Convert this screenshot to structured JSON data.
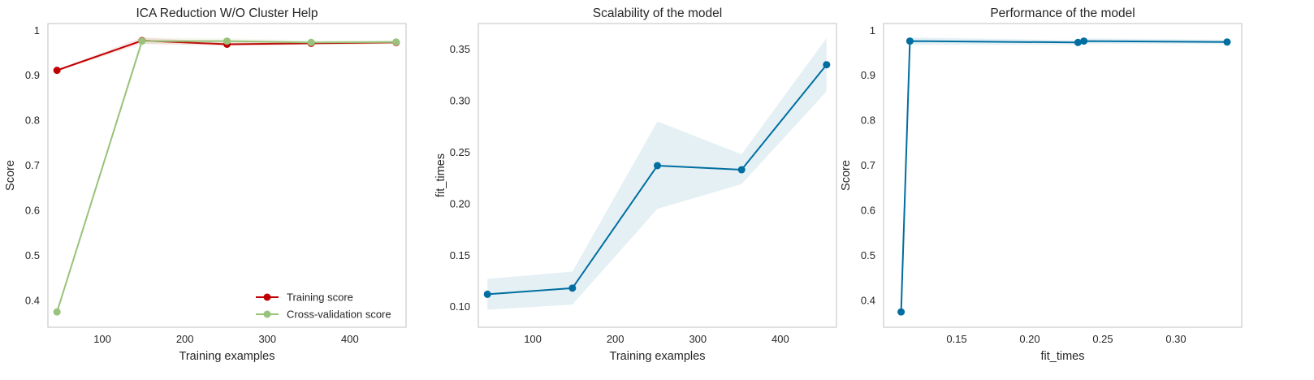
{
  "chart_data": [
    {
      "type": "line",
      "title": "ICA Reduction W/O Cluster Help",
      "xlabel": "Training examples",
      "ylabel": "Score",
      "xlim": [
        34,
        468
      ],
      "ylim": [
        0.34,
        1.015
      ],
      "xticks": [
        100,
        200,
        300,
        400
      ],
      "yticks": [
        0.4,
        0.5,
        0.6,
        0.7,
        0.8,
        0.9,
        1.0
      ],
      "grid": false,
      "legend": "lower-right",
      "series": [
        {
          "name": "Training score",
          "color": "#c00000",
          "x": [
            45,
            148,
            251,
            353,
            456
          ],
          "y": [
            0.911,
            0.977,
            0.969,
            0.971,
            0.973
          ],
          "band_lower": [
            0.909,
            0.97,
            0.965,
            0.968,
            0.97
          ],
          "band_upper": [
            0.913,
            0.984,
            0.973,
            0.974,
            0.976
          ]
        },
        {
          "name": "Cross-validation score",
          "color": "#99c27a",
          "x": [
            45,
            148,
            251,
            353,
            456
          ],
          "y": [
            0.374,
            0.976,
            0.976,
            0.973,
            0.974
          ],
          "band_lower": [
            0.372,
            0.968,
            0.97,
            0.968,
            0.969
          ],
          "band_upper": [
            0.376,
            0.984,
            0.982,
            0.978,
            0.979
          ]
        }
      ]
    },
    {
      "type": "line",
      "title": "Scalability of the model",
      "xlabel": "Training examples",
      "ylabel": "fit_times",
      "xlim": [
        34,
        468
      ],
      "ylim": [
        0.08,
        0.375
      ],
      "xticks": [
        100,
        200,
        300,
        400
      ],
      "yticks": [
        0.1,
        0.15,
        0.2,
        0.25,
        0.3,
        0.35
      ],
      "ytick_labels": [
        "0.10",
        "0.15",
        "0.20",
        "0.25",
        "0.30",
        "0.35"
      ],
      "grid": false,
      "series": [
        {
          "color": "#006ea0",
          "x": [
            45,
            148,
            251,
            353,
            456
          ],
          "y": [
            0.112,
            0.118,
            0.237,
            0.233,
            0.335
          ],
          "band_lower": [
            0.097,
            0.102,
            0.195,
            0.219,
            0.309
          ],
          "band_upper": [
            0.127,
            0.134,
            0.28,
            0.248,
            0.361
          ]
        }
      ]
    },
    {
      "type": "line",
      "title": "Performance of the model",
      "xlabel": "fit_times",
      "ylabel": "Score",
      "xlim": [
        0.1,
        0.345
      ],
      "ylim": [
        0.34,
        1.015
      ],
      "xticks": [
        0.15,
        0.2,
        0.25,
        0.3
      ],
      "xtick_labels": [
        "0.15",
        "0.20",
        "0.25",
        "0.30"
      ],
      "yticks": [
        0.4,
        0.5,
        0.6,
        0.7,
        0.8,
        0.9,
        1.0
      ],
      "grid": false,
      "series": [
        {
          "color": "#006ea0",
          "x": [
            0.112,
            0.118,
            0.233,
            0.237,
            0.335
          ],
          "y": [
            0.374,
            0.976,
            0.973,
            0.976,
            0.974
          ],
          "band_lower": [
            0.372,
            0.968,
            0.968,
            0.97,
            0.969
          ],
          "band_upper": [
            0.376,
            0.984,
            0.978,
            0.982,
            0.979
          ]
        }
      ]
    }
  ]
}
